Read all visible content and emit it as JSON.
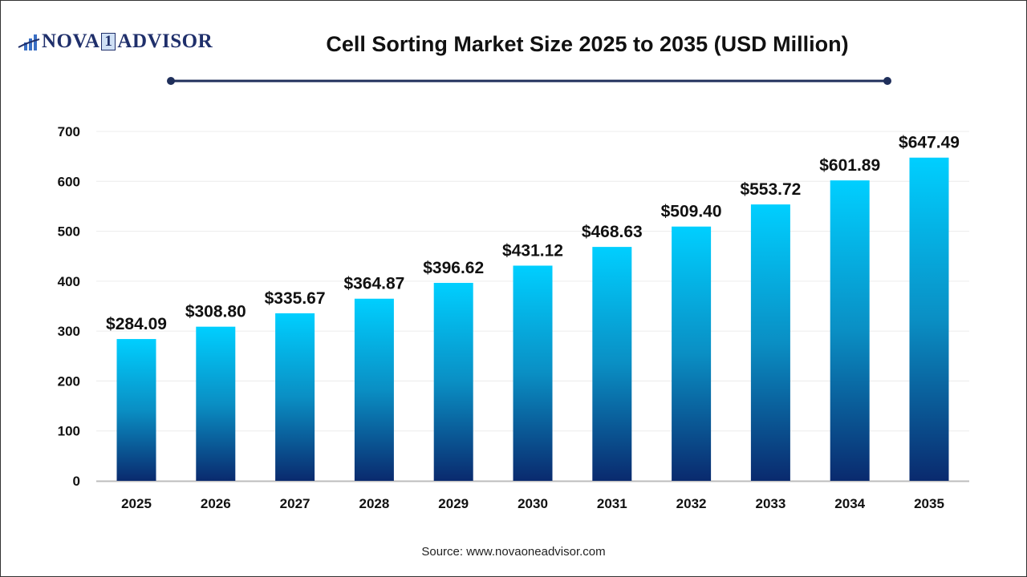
{
  "brand": {
    "logo_text_1": "NOVA",
    "logo_text_num": "1",
    "logo_text_2": "ADVISOR"
  },
  "source": "Source: www.novaoneadvisor.com",
  "colors": {
    "bar_top": "#00cfff",
    "bar_bottom": "#0a2a6e",
    "title_rule": "#1f2f5b"
  },
  "chart_data": {
    "type": "bar",
    "title": "Cell Sorting Market Size 2025 to 2035 (USD Million)",
    "xlabel": "",
    "ylabel": "",
    "categories": [
      "2025",
      "2026",
      "2027",
      "2028",
      "2029",
      "2030",
      "2031",
      "2032",
      "2033",
      "2034",
      "2035"
    ],
    "values": [
      284.09,
      308.8,
      335.67,
      364.87,
      396.62,
      431.12,
      468.63,
      509.4,
      553.72,
      601.89,
      647.49
    ],
    "data_labels": [
      "$284.09",
      "$308.80",
      "$335.67",
      "$364.87",
      "$396.62",
      "$431.12",
      "$468.63",
      "$509.40",
      "$553.72",
      "$601.89",
      "$647.49"
    ],
    "yticks": [
      0,
      100,
      200,
      300,
      400,
      500,
      600,
      700
    ],
    "ylim": [
      0,
      700
    ],
    "grid": true,
    "legend": "none"
  }
}
